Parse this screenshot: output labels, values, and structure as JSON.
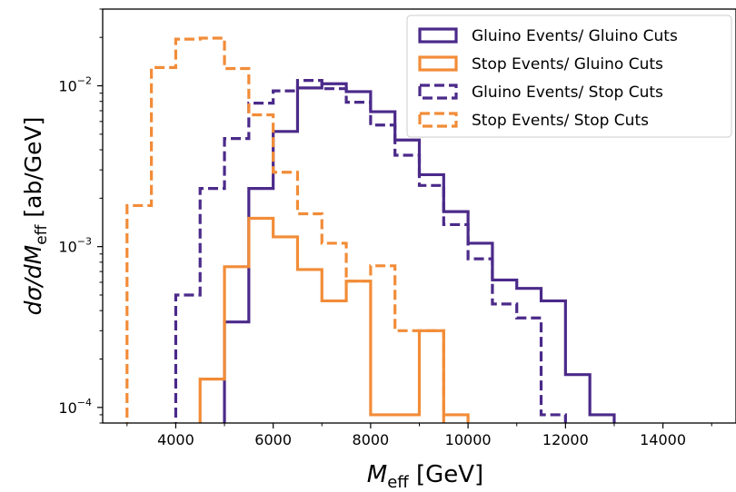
{
  "chart_data": {
    "type": "line",
    "drawstyle": "step-histogram",
    "xlabel_main": "M",
    "xlabel_sub": "eff",
    "xlabel_unit": " [GeV]",
    "ylabel_main": "dσ/dM",
    "ylabel_sub": "eff",
    "ylabel_unit": " [ab/GeV]",
    "xlim": [
      2500,
      15500
    ],
    "ylim": [
      8e-05,
      0.03
    ],
    "yscale": "log",
    "x_ticks": [
      4000,
      6000,
      8000,
      10000,
      12000,
      14000
    ],
    "x_tick_labels": [
      "4000",
      "6000",
      "8000",
      "10000",
      "12000",
      "14000"
    ],
    "y_ticks": [
      0.0001,
      0.001,
      0.01
    ],
    "y_tick_base": "10",
    "y_tick_exponents": [
      "−4",
      "−3",
      "−2"
    ],
    "legend_position": "top-right",
    "bin_width": 500,
    "series": [
      {
        "name": "Gluino Events/ Gluino Cuts",
        "color": "#4b2a8a",
        "dash": "solid",
        "bins": [
          {
            "x": 5000,
            "y": 0.00034
          },
          {
            "x": 5500,
            "y": 0.0023
          },
          {
            "x": 6000,
            "y": 0.0052
          },
          {
            "x": 6500,
            "y": 0.0097
          },
          {
            "x": 7000,
            "y": 0.0103
          },
          {
            "x": 7500,
            "y": 0.0092
          },
          {
            "x": 8000,
            "y": 0.0069
          },
          {
            "x": 8500,
            "y": 0.0046
          },
          {
            "x": 9000,
            "y": 0.0028
          },
          {
            "x": 9500,
            "y": 0.00165
          },
          {
            "x": 10000,
            "y": 0.00105
          },
          {
            "x": 10500,
            "y": 0.00062
          },
          {
            "x": 11000,
            "y": 0.00055
          },
          {
            "x": 11500,
            "y": 0.00046
          },
          {
            "x": 12000,
            "y": 0.00016
          },
          {
            "x": 12500,
            "y": 9e-05
          }
        ]
      },
      {
        "name": "Stop Events/ Gluino Cuts",
        "color": "#f28c38",
        "dash": "solid",
        "bins": [
          {
            "x": 4500,
            "y": 0.00015
          },
          {
            "x": 5000,
            "y": 0.00075
          },
          {
            "x": 5500,
            "y": 0.0015
          },
          {
            "x": 6000,
            "y": 0.00115
          },
          {
            "x": 6500,
            "y": 0.00072
          },
          {
            "x": 7000,
            "y": 0.00046
          },
          {
            "x": 7500,
            "y": 0.00061
          },
          {
            "x": 8000,
            "y": 9e-05
          },
          {
            "x": 8500,
            "y": 9e-05
          },
          {
            "x": 9000,
            "y": 0.0003
          },
          {
            "x": 9500,
            "y": 9e-05
          }
        ]
      },
      {
        "name": "Gluino Events/ Stop Cuts",
        "color": "#4b2a8a",
        "dash": "dashed",
        "bins": [
          {
            "x": 4000,
            "y": 0.0005
          },
          {
            "x": 4500,
            "y": 0.0023
          },
          {
            "x": 5000,
            "y": 0.0047
          },
          {
            "x": 5500,
            "y": 0.0078
          },
          {
            "x": 6000,
            "y": 0.0093
          },
          {
            "x": 6500,
            "y": 0.0108
          },
          {
            "x": 7000,
            "y": 0.0096
          },
          {
            "x": 7500,
            "y": 0.0079
          },
          {
            "x": 8000,
            "y": 0.0057
          },
          {
            "x": 8500,
            "y": 0.0037
          },
          {
            "x": 9000,
            "y": 0.0024
          },
          {
            "x": 9500,
            "y": 0.00137
          },
          {
            "x": 10000,
            "y": 0.00084
          },
          {
            "x": 10500,
            "y": 0.00044
          },
          {
            "x": 11000,
            "y": 0.00036
          },
          {
            "x": 11500,
            "y": 9e-05
          }
        ]
      },
      {
        "name": "Stop Events/ Stop Cuts",
        "color": "#f28c38",
        "dash": "dashed",
        "bins": [
          {
            "x": 3000,
            "y": 0.0018
          },
          {
            "x": 3500,
            "y": 0.013
          },
          {
            "x": 4000,
            "y": 0.0195
          },
          {
            "x": 4500,
            "y": 0.0198
          },
          {
            "x": 5000,
            "y": 0.0128
          },
          {
            "x": 5500,
            "y": 0.0066
          },
          {
            "x": 6000,
            "y": 0.0029
          },
          {
            "x": 6500,
            "y": 0.0016
          },
          {
            "x": 7000,
            "y": 0.00105
          },
          {
            "x": 7500,
            "y": 0.00061
          },
          {
            "x": 8000,
            "y": 0.00076
          },
          {
            "x": 8500,
            "y": 0.0003
          },
          {
            "x": 9000,
            "y": 0.0003
          }
        ]
      }
    ]
  }
}
